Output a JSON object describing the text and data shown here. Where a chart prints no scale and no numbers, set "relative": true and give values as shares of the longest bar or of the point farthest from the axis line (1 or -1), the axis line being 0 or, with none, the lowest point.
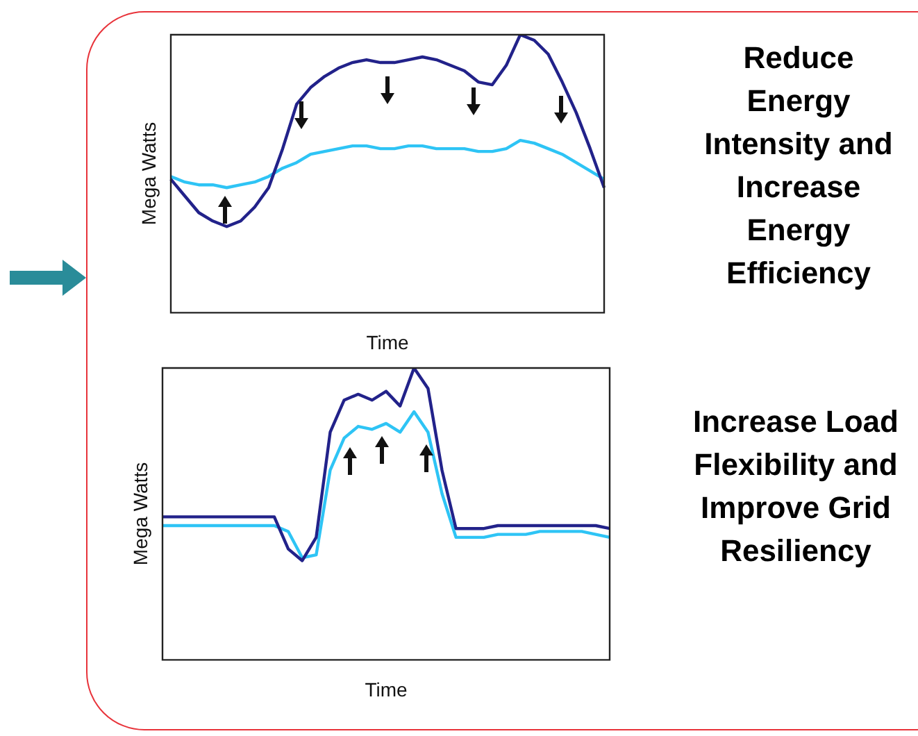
{
  "chart_data": [
    {
      "type": "line",
      "xlabel": "Time",
      "ylabel": "Mega Watts",
      "annotations": [
        "Reduce Energy Intensity and Increase Energy Efficiency"
      ],
      "relative": true,
      "tick_labels": false,
      "grid": false,
      "legend": false,
      "marker": "none",
      "categories": [
        null,
        null,
        null,
        null,
        null,
        null,
        null,
        null,
        null,
        null,
        null,
        null,
        null,
        null,
        null,
        null,
        null,
        null,
        null,
        null,
        null,
        null,
        null,
        null,
        null,
        null,
        null,
        null,
        null,
        null,
        null,
        null
      ],
      "series": [
        {
          "color": "#22228a",
          "values": [
            0.48,
            0.42,
            0.36,
            0.33,
            0.31,
            0.33,
            0.38,
            0.45,
            0.59,
            0.75,
            0.81,
            0.85,
            0.88,
            0.9,
            0.91,
            0.9,
            0.9,
            0.91,
            0.92,
            0.91,
            0.89,
            0.87,
            0.83,
            0.82,
            0.89,
            1,
            0.98,
            0.93,
            0.83,
            0.72,
            0.59,
            0.45
          ]
        },
        {
          "color": "#2ec4f5",
          "values": [
            0.49,
            0.47,
            0.46,
            0.46,
            0.45,
            0.46,
            0.47,
            0.49,
            0.52,
            0.54,
            0.57,
            0.58,
            0.59,
            0.6,
            0.6,
            0.59,
            0.59,
            0.6,
            0.6,
            0.59,
            0.59,
            0.59,
            0.58,
            0.58,
            0.59,
            0.62,
            0.61,
            0.59,
            0.57,
            0.54,
            0.51,
            0.48
          ]
        }
      ]
    },
    {
      "type": "line",
      "xlabel": "Time",
      "ylabel": "Mega Watts",
      "annotations": [
        "Increase Load Flexibility and Improve Grid Resiliency"
      ],
      "relative": true,
      "tick_labels": false,
      "grid": false,
      "legend": false,
      "marker": "none",
      "categories": [
        null,
        null,
        null,
        null,
        null,
        null,
        null,
        null,
        null,
        null,
        null,
        null,
        null,
        null,
        null,
        null,
        null,
        null,
        null,
        null,
        null,
        null,
        null,
        null,
        null,
        null,
        null,
        null,
        null,
        null,
        null,
        null,
        null
      ],
      "series": [
        {
          "color": "#22228a",
          "values": [
            0.49,
            0.49,
            0.49,
            0.49,
            0.49,
            0.49,
            0.49,
            0.49,
            0.49,
            0.38,
            0.34,
            0.42,
            0.78,
            0.89,
            0.91,
            0.89,
            0.92,
            0.87,
            1,
            0.93,
            0.65,
            0.45,
            0.45,
            0.45,
            0.46,
            0.46,
            0.46,
            0.46,
            0.46,
            0.46,
            0.46,
            0.46,
            0.45
          ]
        },
        {
          "color": "#2ec4f5",
          "values": [
            0.46,
            0.46,
            0.46,
            0.46,
            0.46,
            0.46,
            0.46,
            0.46,
            0.46,
            0.44,
            0.35,
            0.36,
            0.65,
            0.76,
            0.8,
            0.79,
            0.81,
            0.78,
            0.85,
            0.78,
            0.57,
            0.42,
            0.42,
            0.42,
            0.43,
            0.43,
            0.43,
            0.44,
            0.44,
            0.44,
            0.44,
            0.43,
            0.42
          ]
        }
      ]
    }
  ]
}
